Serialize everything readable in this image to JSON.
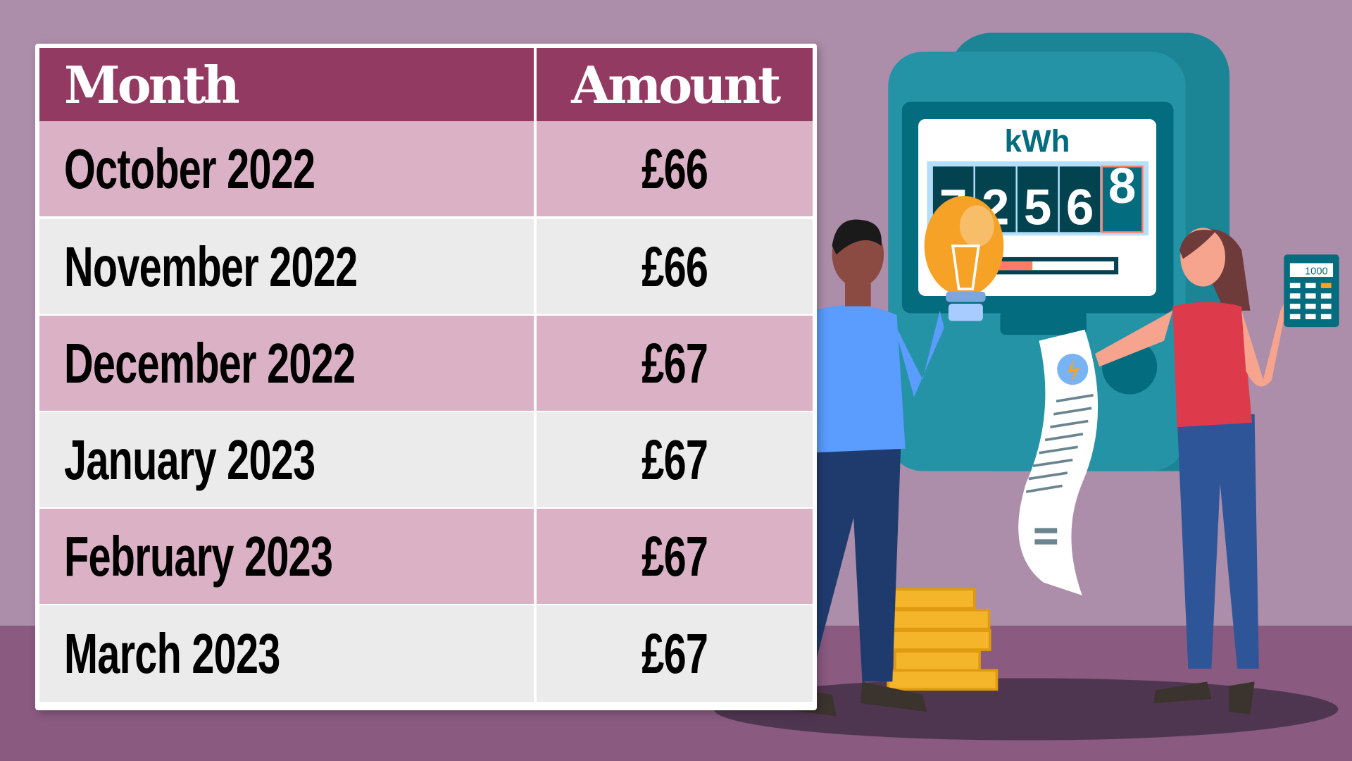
{
  "table": {
    "headers": {
      "month": "Month",
      "amount": "Amount"
    },
    "rows": [
      {
        "month": "October 2022",
        "amount": "£66"
      },
      {
        "month": "November 2022",
        "amount": "£66"
      },
      {
        "month": "December 2022",
        "amount": "£67"
      },
      {
        "month": "January 2023",
        "amount": "£67"
      },
      {
        "month": "February 2023",
        "amount": "£67"
      },
      {
        "month": "March 2023",
        "amount": "£67"
      }
    ]
  },
  "meter": {
    "unit": "kWh",
    "digits": [
      "7",
      "2",
      "5",
      "6",
      "8"
    ],
    "usage_bar_fraction": 0.45
  },
  "calculator": {
    "display": "1000"
  },
  "colors": {
    "header": "#923a61",
    "row_pink": "#dbb1c5",
    "row_grey": "#ebebeb",
    "background": "#ad8eaa",
    "meter": "#2593a6"
  }
}
